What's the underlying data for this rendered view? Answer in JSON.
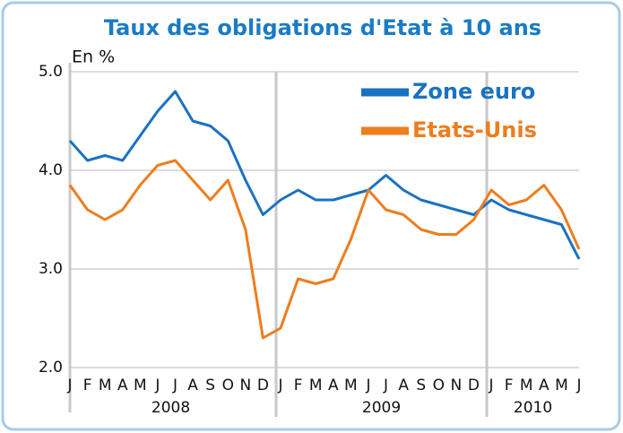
{
  "chart_data": {
    "type": "line",
    "title": "Taux des obligations d'Etat à 10 ans",
    "ylabel": "En %",
    "x": [
      "2008-01",
      "2008-02",
      "2008-03",
      "2008-04",
      "2008-05",
      "2008-06",
      "2008-07",
      "2008-08",
      "2008-09",
      "2008-10",
      "2008-11",
      "2008-12",
      "2009-01",
      "2009-02",
      "2009-03",
      "2009-04",
      "2009-05",
      "2009-06",
      "2009-07",
      "2009-08",
      "2009-09",
      "2009-10",
      "2009-11",
      "2009-12",
      "2010-01",
      "2010-02",
      "2010-03",
      "2010-04",
      "2010-05",
      "2010-06"
    ],
    "xticks": [
      {
        "value": "2008-01",
        "label": "J"
      },
      {
        "value": "2008-02",
        "label": "F"
      },
      {
        "value": "2008-03",
        "label": "M"
      },
      {
        "value": "2008-04",
        "label": "A"
      },
      {
        "value": "2008-05",
        "label": "M"
      },
      {
        "value": "2008-06",
        "label": "J"
      },
      {
        "value": "2008-07",
        "label": "J"
      },
      {
        "value": "2008-08",
        "label": "A"
      },
      {
        "value": "2008-09",
        "label": "S"
      },
      {
        "value": "2008-10",
        "label": "O"
      },
      {
        "value": "2008-11",
        "label": "N"
      },
      {
        "value": "2008-12",
        "label": "D"
      },
      {
        "value": "2009-01",
        "label": "J"
      },
      {
        "value": "2009-02",
        "label": "F"
      },
      {
        "value": "2009-03",
        "label": "M"
      },
      {
        "value": "2009-04",
        "label": "A"
      },
      {
        "value": "2009-05",
        "label": "M"
      },
      {
        "value": "2009-06",
        "label": "J"
      },
      {
        "value": "2009-07",
        "label": "J"
      },
      {
        "value": "2009-08",
        "label": "A"
      },
      {
        "value": "2009-09",
        "label": "S"
      },
      {
        "value": "2009-10",
        "label": "O"
      },
      {
        "value": "2009-11",
        "label": "N"
      },
      {
        "value": "2009-12",
        "label": "D"
      },
      {
        "value": "2010-01",
        "label": "J"
      },
      {
        "value": "2010-02",
        "label": "F"
      },
      {
        "value": "2010-03",
        "label": "M"
      },
      {
        "value": "2010-04",
        "label": "A"
      },
      {
        "value": "2010-05",
        "label": "M"
      },
      {
        "value": "2010-06",
        "label": "J"
      }
    ],
    "years": [
      "2008",
      "2009",
      "2010"
    ],
    "ylim": [
      2,
      5
    ],
    "yticks": [
      {
        "value": 2,
        "label": "2.0"
      },
      {
        "value": 3,
        "label": "3.0"
      },
      {
        "value": 4,
        "label": "4.0"
      },
      {
        "value": 5,
        "label": "5.0"
      }
    ],
    "grid": true,
    "legend": "upper right",
    "series": [
      {
        "name": "Zone euro",
        "color": "#1a72c0",
        "values": [
          4.3,
          4.1,
          4.15,
          4.1,
          4.35,
          4.6,
          4.8,
          4.5,
          4.45,
          4.3,
          3.9,
          3.55,
          3.7,
          3.8,
          3.7,
          3.7,
          3.75,
          3.8,
          3.95,
          3.8,
          3.7,
          3.65,
          3.6,
          3.55,
          3.7,
          3.6,
          3.55,
          3.5,
          3.45,
          3.1
        ]
      },
      {
        "name": "Etats-Unis",
        "color": "#ee7d1e",
        "values": [
          3.85,
          3.6,
          3.5,
          3.6,
          3.85,
          4.05,
          4.1,
          3.9,
          3.7,
          3.9,
          3.4,
          2.3,
          2.4,
          2.9,
          2.85,
          2.9,
          3.3,
          3.8,
          3.6,
          3.55,
          3.4,
          3.35,
          3.35,
          3.5,
          3.8,
          3.65,
          3.7,
          3.85,
          3.6,
          3.2
        ]
      }
    ]
  }
}
